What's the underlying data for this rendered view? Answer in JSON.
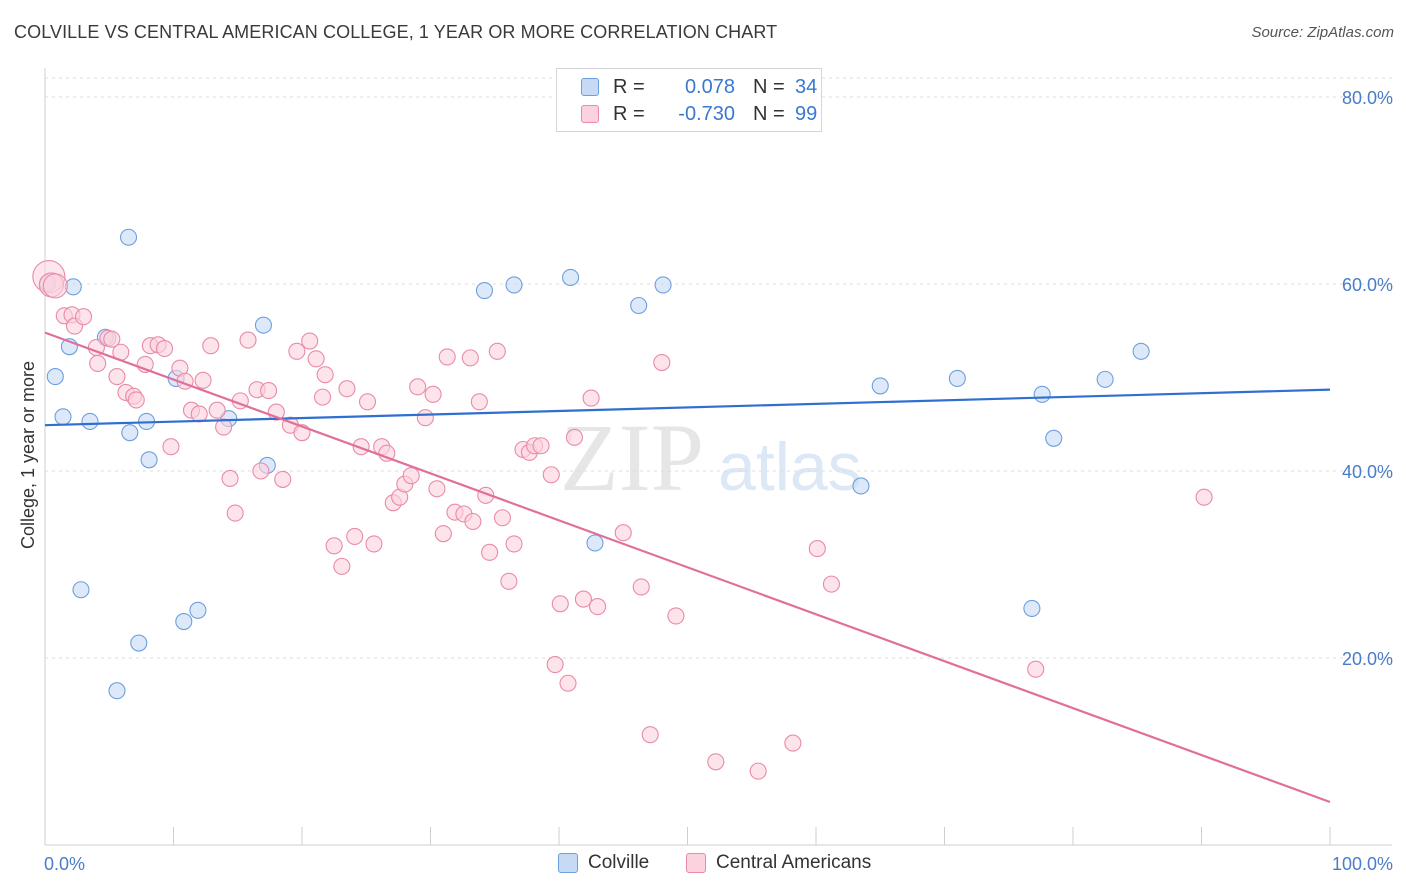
{
  "title": "COLVILLE VS CENTRAL AMERICAN COLLEGE, 1 YEAR OR MORE CORRELATION CHART",
  "source": "Source: ZipAtlas.com",
  "watermark": {
    "zip": "ZIP",
    "atlas": "atlas"
  },
  "legend": {
    "rows": [
      {
        "r_label": "R =",
        "r_value": "0.078",
        "n_label": "N =",
        "n_value": "34",
        "color": "#a8c8f0",
        "border": "#6d9fde"
      },
      {
        "r_label": "R =",
        "r_value": "-0.730",
        "n_label": "N =",
        "n_value": "99",
        "color": "#f8c0d0",
        "border": "#e98aa8"
      }
    ]
  },
  "bottom_legend": [
    {
      "label": "Colville",
      "color": "#c6daf5",
      "border": "#6d9fde"
    },
    {
      "label": "Central Americans",
      "color": "#fbd2de",
      "border": "#e98aa8"
    }
  ],
  "chart_data": {
    "type": "scatter",
    "title": "COLVILLE VS CENTRAL AMERICAN COLLEGE, 1 YEAR OR MORE CORRELATION CHART",
    "xlabel": "",
    "ylabel": "College, 1 year or more",
    "xlim": [
      0,
      100
    ],
    "ylim": [
      0,
      82
    ],
    "x_tick_labels": [
      "0.0%",
      "100.0%"
    ],
    "y_ticks": [
      20,
      40,
      60,
      80
    ],
    "y_tick_labels": [
      "20.0%",
      "40.0%",
      "60.0%",
      "80.0%"
    ],
    "grid": true,
    "series": [
      {
        "name": "Colville",
        "color": "#6d9fde",
        "fill": "#c6daf5",
        "line": "#2f6fd0",
        "trend": {
          "x0": 0,
          "y0": 44.9,
          "x1": 100,
          "y1": 48.7
        },
        "points": [
          [
            0.2,
            60.1
          ],
          [
            0.8,
            50.1
          ],
          [
            1.4,
            45.8
          ],
          [
            1.9,
            53.3
          ],
          [
            2.2,
            59.7
          ],
          [
            2.8,
            27.3
          ],
          [
            3.5,
            45.3
          ],
          [
            4.7,
            54.3
          ],
          [
            5.6,
            16.5
          ],
          [
            6.5,
            65.0
          ],
          [
            6.6,
            44.1
          ],
          [
            7.3,
            21.6
          ],
          [
            7.9,
            45.3
          ],
          [
            8.1,
            41.2
          ],
          [
            10.2,
            49.9
          ],
          [
            10.8,
            23.9
          ],
          [
            11.9,
            25.1
          ],
          [
            14.3,
            45.6
          ],
          [
            17.0,
            55.6
          ],
          [
            17.3,
            40.6
          ],
          [
            34.2,
            59.3
          ],
          [
            36.5,
            59.9
          ],
          [
            40.9,
            60.7
          ],
          [
            42.8,
            32.3
          ],
          [
            46.2,
            57.7
          ],
          [
            48.1,
            59.9
          ],
          [
            63.5,
            38.4
          ],
          [
            65.0,
            49.1
          ],
          [
            71.0,
            49.9
          ],
          [
            76.8,
            25.3
          ],
          [
            77.6,
            48.2
          ],
          [
            78.5,
            43.5
          ],
          [
            82.5,
            49.8
          ],
          [
            85.3,
            52.8
          ]
        ]
      },
      {
        "name": "Central Americans",
        "color": "#e98aa8",
        "fill": "#fbd2de",
        "line": "#e0709a",
        "trend": {
          "x0": 0,
          "y0": 54.8,
          "x1": 100,
          "y1": 4.6
        },
        "points": [
          [
            0.3,
            60.8
          ],
          [
            0.5,
            59.9
          ],
          [
            0.8,
            59.8
          ],
          [
            1.5,
            56.6
          ],
          [
            2.1,
            56.7
          ],
          [
            2.3,
            55.5
          ],
          [
            3.0,
            56.5
          ],
          [
            4.0,
            53.2
          ],
          [
            4.1,
            51.5
          ],
          [
            4.9,
            54.2
          ],
          [
            5.2,
            54.1
          ],
          [
            5.6,
            50.1
          ],
          [
            5.9,
            52.7
          ],
          [
            6.3,
            48.4
          ],
          [
            6.9,
            48.0
          ],
          [
            7.1,
            47.6
          ],
          [
            7.8,
            51.4
          ],
          [
            8.2,
            53.4
          ],
          [
            8.8,
            53.5
          ],
          [
            9.3,
            53.1
          ],
          [
            9.8,
            42.6
          ],
          [
            10.5,
            51.0
          ],
          [
            10.9,
            49.6
          ],
          [
            11.4,
            46.5
          ],
          [
            12.0,
            46.1
          ],
          [
            12.3,
            49.7
          ],
          [
            12.9,
            53.4
          ],
          [
            13.4,
            46.5
          ],
          [
            13.9,
            44.7
          ],
          [
            14.4,
            39.2
          ],
          [
            14.8,
            35.5
          ],
          [
            15.2,
            47.5
          ],
          [
            15.8,
            54.0
          ],
          [
            16.5,
            48.7
          ],
          [
            16.8,
            40.0
          ],
          [
            17.4,
            48.6
          ],
          [
            18.0,
            46.3
          ],
          [
            18.5,
            39.1
          ],
          [
            19.1,
            44.9
          ],
          [
            19.6,
            52.8
          ],
          [
            20.0,
            44.1
          ],
          [
            20.6,
            53.9
          ],
          [
            21.1,
            52.0
          ],
          [
            21.6,
            47.9
          ],
          [
            21.8,
            50.3
          ],
          [
            22.5,
            32.0
          ],
          [
            23.1,
            29.8
          ],
          [
            23.5,
            48.8
          ],
          [
            24.1,
            33.0
          ],
          [
            24.6,
            42.6
          ],
          [
            25.1,
            47.4
          ],
          [
            25.6,
            32.2
          ],
          [
            26.2,
            42.6
          ],
          [
            26.6,
            41.9
          ],
          [
            27.1,
            36.6
          ],
          [
            27.6,
            37.2
          ],
          [
            28.0,
            38.6
          ],
          [
            28.5,
            39.5
          ],
          [
            29.0,
            49.0
          ],
          [
            29.6,
            45.7
          ],
          [
            30.2,
            48.2
          ],
          [
            30.5,
            38.1
          ],
          [
            31.0,
            33.3
          ],
          [
            31.3,
            52.2
          ],
          [
            31.9,
            35.6
          ],
          [
            32.6,
            35.4
          ],
          [
            33.1,
            52.1
          ],
          [
            33.3,
            34.6
          ],
          [
            33.8,
            47.4
          ],
          [
            34.3,
            37.4
          ],
          [
            34.6,
            31.3
          ],
          [
            35.2,
            52.8
          ],
          [
            35.6,
            35.0
          ],
          [
            36.1,
            28.2
          ],
          [
            36.5,
            32.2
          ],
          [
            37.2,
            42.3
          ],
          [
            37.7,
            42.0
          ],
          [
            38.1,
            42.7
          ],
          [
            38.6,
            42.7
          ],
          [
            39.4,
            39.6
          ],
          [
            39.7,
            19.3
          ],
          [
            40.1,
            25.8
          ],
          [
            40.7,
            17.3
          ],
          [
            41.2,
            43.6
          ],
          [
            41.9,
            26.3
          ],
          [
            42.5,
            47.8
          ],
          [
            43.0,
            25.5
          ],
          [
            45.0,
            33.4
          ],
          [
            46.4,
            27.6
          ],
          [
            47.1,
            11.8
          ],
          [
            48.0,
            51.6
          ],
          [
            49.1,
            24.5
          ],
          [
            52.2,
            8.9
          ],
          [
            55.5,
            7.9
          ],
          [
            58.2,
            10.9
          ],
          [
            60.1,
            31.7
          ],
          [
            61.2,
            27.9
          ],
          [
            77.1,
            18.8
          ],
          [
            90.2,
            37.2
          ]
        ]
      }
    ]
  }
}
